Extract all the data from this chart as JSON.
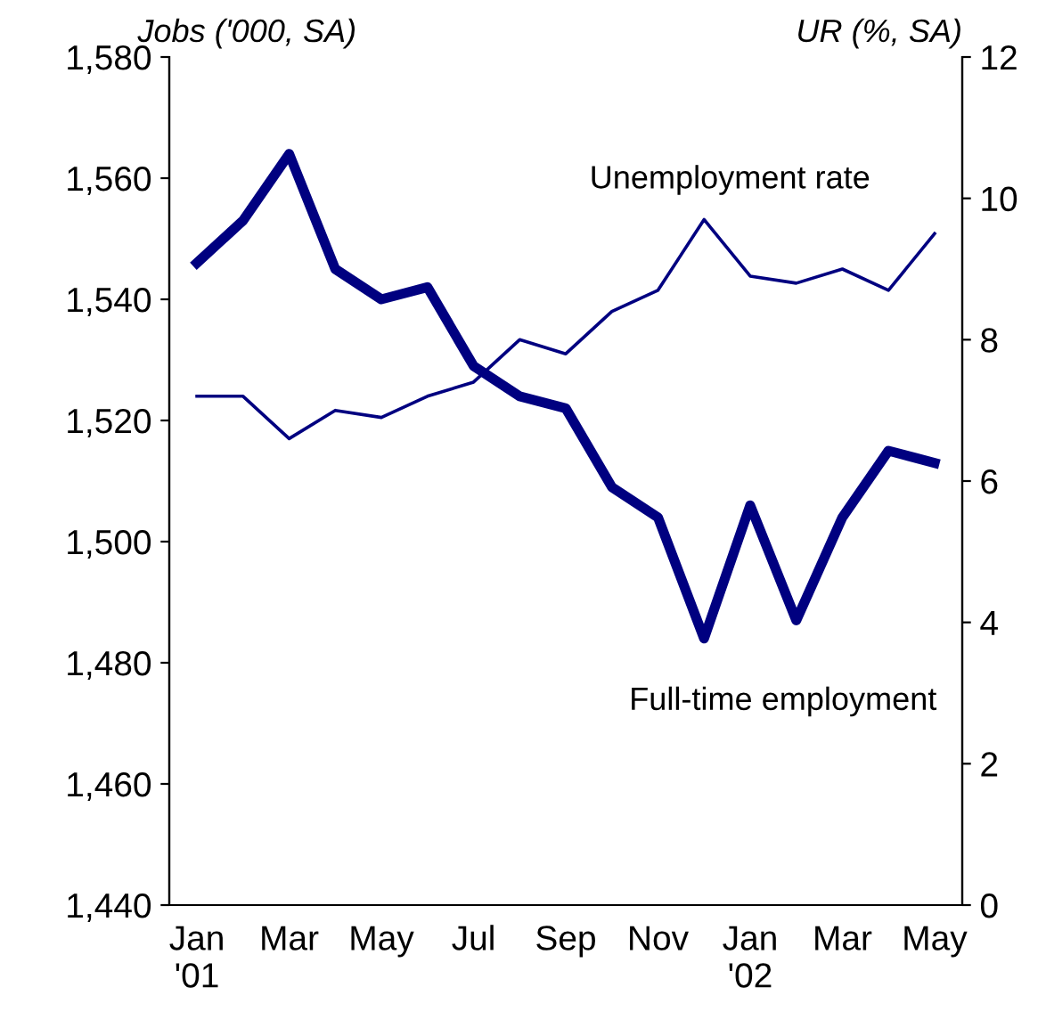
{
  "chart_data": {
    "type": "line",
    "ylabel": "Jobs ('000, SA)",
    "y2label": "UR (%, SA)",
    "categories": [
      "Jan\n'01",
      null,
      "Mar",
      null,
      "May",
      null,
      "Jul",
      null,
      "Sep",
      null,
      "Nov",
      null,
      "Jan\n'02",
      null,
      "Mar",
      null,
      "May"
    ],
    "series": [
      {
        "name": "Full-time employment",
        "color": "#000080",
        "values": [
          1546,
          1553,
          1564,
          1545,
          1540,
          1542,
          1529,
          1524,
          1522,
          1509,
          1504,
          1484,
          1506,
          1487,
          1504,
          1515,
          1513
        ]
      },
      {
        "name": "Unemployment rate",
        "color": "#000080",
        "axis": "y2",
        "values": [
          7.2,
          7.2,
          6.6,
          7.0,
          6.9,
          7.2,
          7.4,
          8.0,
          7.8,
          8.4,
          8.7,
          9.7,
          8.9,
          8.8,
          9.0,
          8.7,
          9.5
        ]
      }
    ],
    "ylim": [
      1440,
      1580
    ],
    "yticks": [
      {
        "value": 1440,
        "label": "1,440"
      },
      {
        "value": 1460,
        "label": "1,460"
      },
      {
        "value": 1480,
        "label": "1,480"
      },
      {
        "value": 1500,
        "label": "1,500"
      },
      {
        "value": 1520,
        "label": "1,520"
      },
      {
        "value": 1540,
        "label": "1,540"
      },
      {
        "value": 1560,
        "label": "1,560"
      },
      {
        "value": 1580,
        "label": "1,580"
      }
    ],
    "y2lim": [
      0,
      12
    ],
    "y2ticks": [
      0,
      2,
      4,
      6,
      8,
      10,
      12
    ],
    "grid": false,
    "marker": "none",
    "line_style": "solid"
  }
}
